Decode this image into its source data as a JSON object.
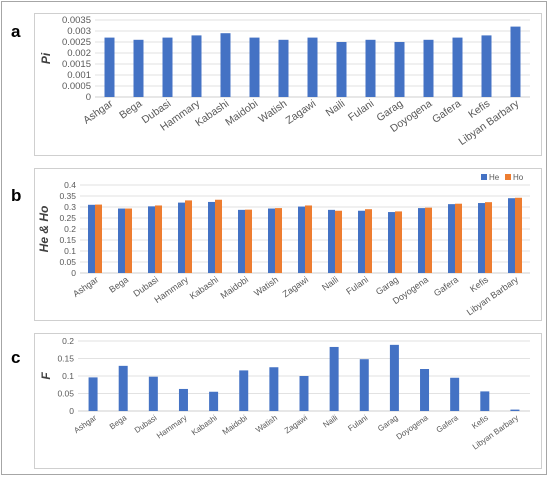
{
  "panels": [
    {
      "letter": "a"
    },
    {
      "letter": "b"
    },
    {
      "letter": "c"
    }
  ],
  "colors": {
    "he": "#4472C4",
    "ho": "#ED7D31",
    "grid": "#d9d9d9",
    "axis": "#bfbfbf"
  },
  "chart_data": [
    {
      "type": "bar",
      "ylabel": "Pi",
      "ylim": [
        0,
        0.0035
      ],
      "yticks": [
        "0",
        "0.0005",
        "0.001",
        "0.0015",
        "0.002",
        "0.0025",
        "0.003",
        "0.0035"
      ],
      "grid": true,
      "categories": [
        "Ashgar",
        "Bega",
        "Dubasi",
        "Hammary",
        "Kabashi",
        "Maidobi",
        "Watish",
        "Zagawi",
        "Naili",
        "Fulani",
        "Garag",
        "Doyogena",
        "Gafera",
        "Kefis",
        "Libyan Barbary"
      ],
      "series": [
        {
          "values": [
            0.0027,
            0.0026,
            0.0027,
            0.0028,
            0.0029,
            0.0027,
            0.0026,
            0.0027,
            0.0025,
            0.0026,
            0.0025,
            0.0026,
            0.0027,
            0.0028,
            0.0032
          ]
        }
      ]
    },
    {
      "type": "bar",
      "ylabel": "He & Ho",
      "ylim": [
        0,
        0.4
      ],
      "yticks": [
        "0",
        "0.05",
        "0.1",
        "0.15",
        "0.2",
        "0.25",
        "0.3",
        "0.35",
        "0.4"
      ],
      "grid": true,
      "legend_position": "top-right",
      "categories": [
        "Ashgar",
        "Bega",
        "Dubasi",
        "Hammary",
        "Kabashi",
        "Maidobi",
        "Watish",
        "Zagawi",
        "Naili",
        "Fulani",
        "Garag",
        "Doyogena",
        "Gafera",
        "Kefis",
        "Libyan Barbary"
      ],
      "series": [
        {
          "name": "He",
          "values": [
            0.31,
            0.293,
            0.303,
            0.32,
            0.323,
            0.287,
            0.293,
            0.302,
            0.287,
            0.283,
            0.277,
            0.295,
            0.313,
            0.318,
            0.34
          ]
        },
        {
          "name": "Ho",
          "values": [
            0.311,
            0.293,
            0.307,
            0.33,
            0.333,
            0.288,
            0.295,
            0.307,
            0.283,
            0.29,
            0.28,
            0.297,
            0.315,
            0.322,
            0.342
          ]
        }
      ]
    },
    {
      "type": "bar",
      "ylabel": "F",
      "ylim": [
        0,
        0.2
      ],
      "yticks": [
        "0",
        "0.05",
        "0.1",
        "0.15",
        "0.2"
      ],
      "grid": true,
      "categories": [
        "Ashgar",
        "Bega",
        "Dubasi",
        "Hammary",
        "Kabashi",
        "Maidobi",
        "Watish",
        "Zagawi",
        "Naili",
        "Fulani",
        "Garag",
        "Doyogena",
        "Gafera",
        "Kefis",
        "Libyan Barbary"
      ],
      "series": [
        {
          "values": [
            0.096,
            0.129,
            0.098,
            0.063,
            0.055,
            0.116,
            0.125,
            0.1,
            0.183,
            0.148,
            0.189,
            0.12,
            0.095,
            0.056,
            0.004
          ]
        }
      ]
    }
  ]
}
